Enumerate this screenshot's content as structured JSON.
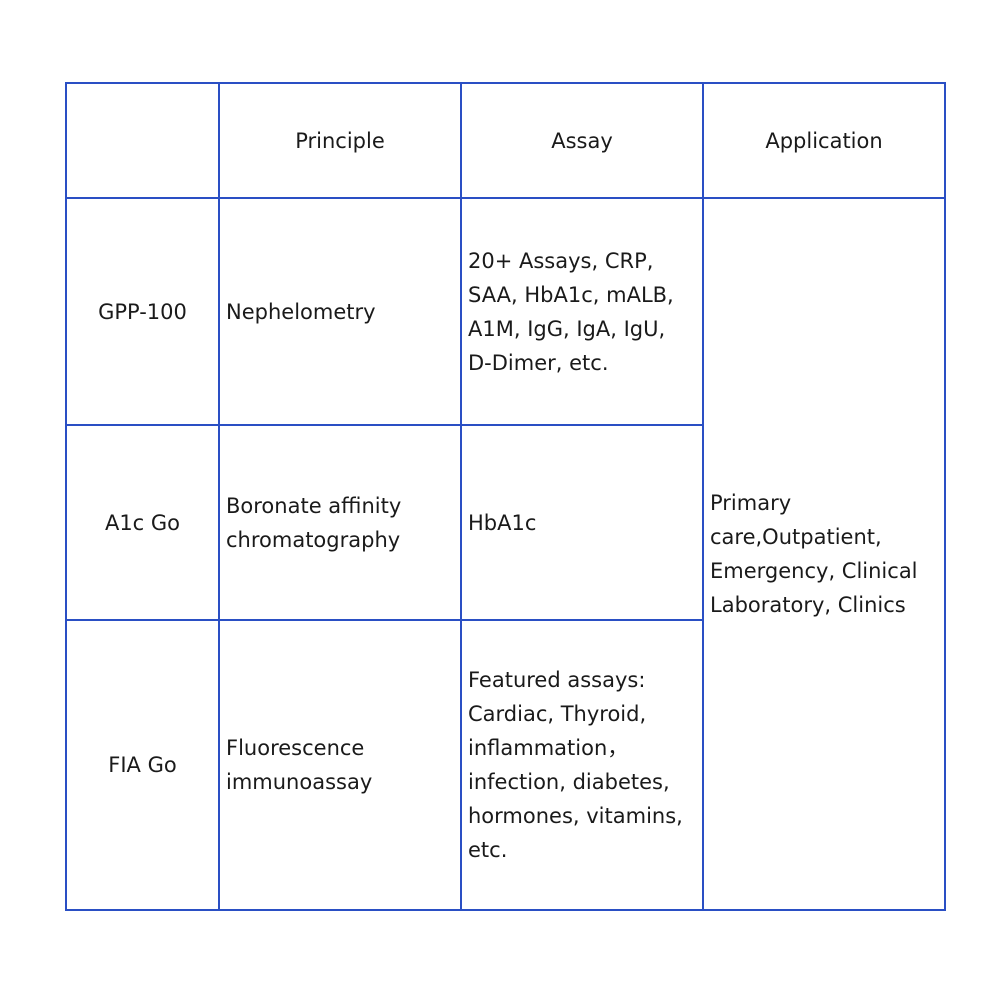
{
  "header": [
    "",
    "Principle",
    "Assay",
    "Application"
  ],
  "rows": [
    {
      "name": "GPP-100",
      "principle": [
        "Nephelometry"
      ],
      "assay": [
        "20+ Assays, CRP,",
        "SAA, HbA1c, mALB,",
        "A1M, IgG, IgA, IgU,",
        "D-Dimer, etc."
      ]
    },
    {
      "name": "A1c Go",
      "principle": [
        "Boronate affinity",
        "chromatography"
      ],
      "assay": [
        "HbA1c"
      ]
    },
    {
      "name": "FIA Go",
      "principle": [
        "Fluorescence",
        "immunoassay"
      ],
      "assay": [
        "Featured assays:",
        "Cardiac, Thyroid,",
        "inflammation，",
        "infection, diabetes,",
        "hormones, vitamins,",
        "etc."
      ]
    }
  ],
  "application": [
    "Primary",
    "care,Outpatient,",
    "Emergency, Clinical",
    "Laboratory, Clinics"
  ],
  "colors": {
    "border": "#2a4fc4",
    "text": "#1a1a1a"
  }
}
